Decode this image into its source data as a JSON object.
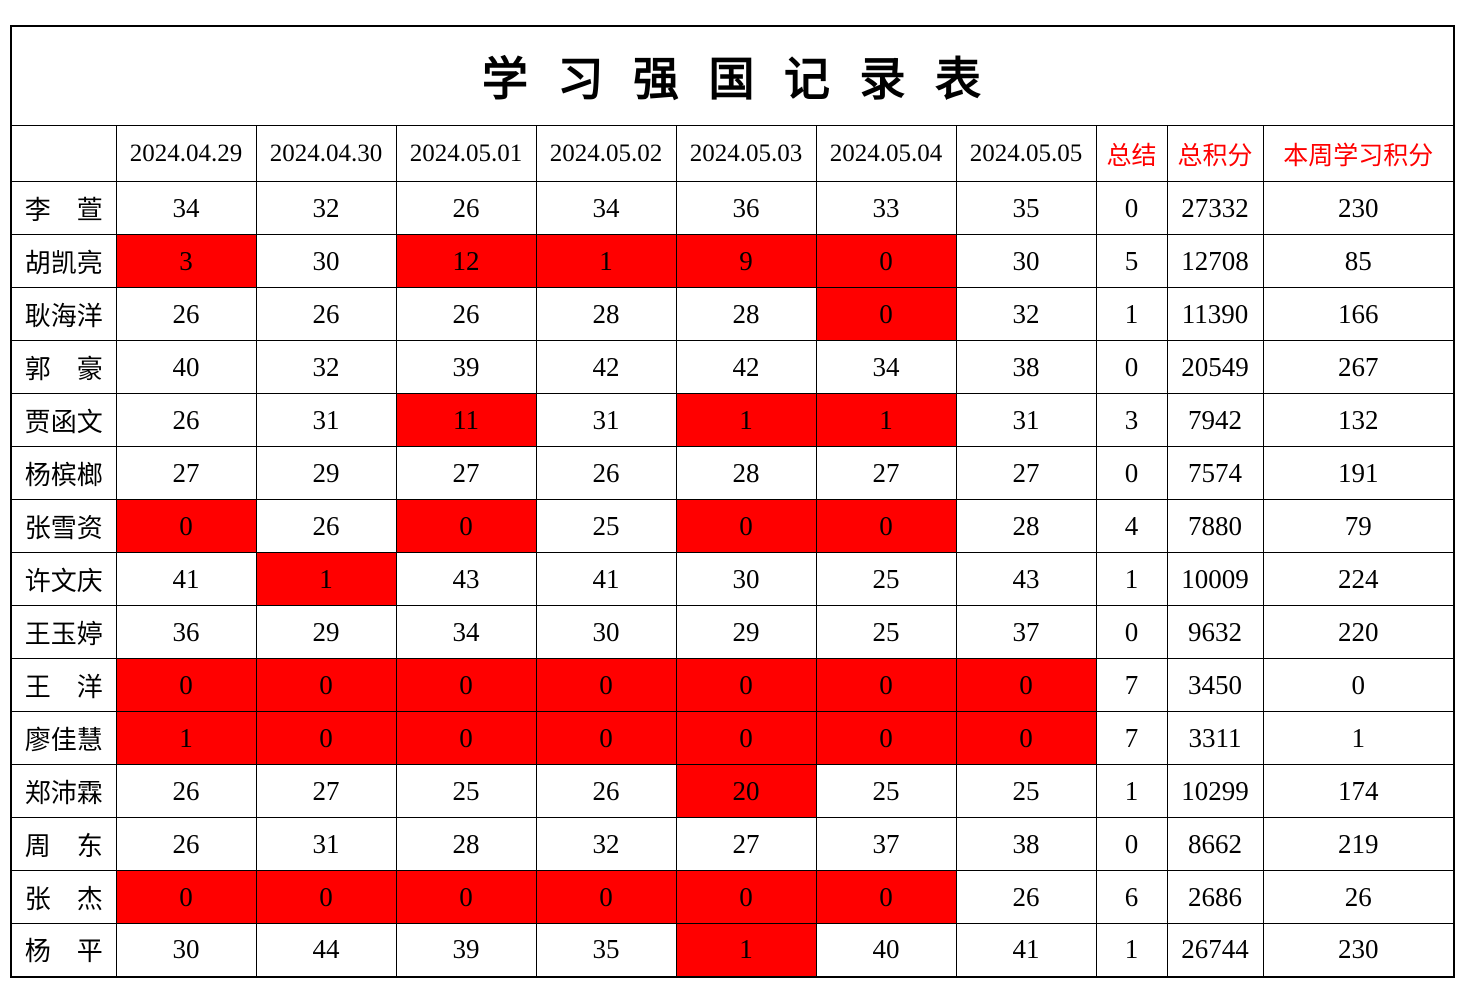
{
  "title": "学 习 强 国 记 录 表",
  "colors": {
    "alert_bg": "#FF0000",
    "alert_text": "#FFFF00",
    "accent_red": "#FF0000",
    "border": "#000000",
    "background": "#FFFFFF"
  },
  "table": {
    "corner_label": "",
    "date_columns": [
      "2024.04.29",
      "2024.04.30",
      "2024.05.01",
      "2024.05.02",
      "2024.05.03",
      "2024.05.04",
      "2024.05.05"
    ],
    "summary_columns": [
      "总结",
      "总积分",
      "本周学习积分"
    ],
    "rows": [
      {
        "name": "李　萱",
        "scores": [
          "34",
          "32",
          "26",
          "34",
          "36",
          "33",
          "35"
        ],
        "alerts": [],
        "summary": "0",
        "total": "27332",
        "week": "230"
      },
      {
        "name": "胡凯亮",
        "scores": [
          "3",
          "30",
          "12",
          "1",
          "9",
          "0",
          "30"
        ],
        "alerts": [
          0,
          2,
          3,
          4,
          5
        ],
        "summary": "5",
        "total": "12708",
        "week": "85"
      },
      {
        "name": "耿海洋",
        "scores": [
          "26",
          "26",
          "26",
          "28",
          "28",
          "0",
          "32"
        ],
        "alerts": [
          5
        ],
        "summary": "1",
        "total": "11390",
        "week": "166"
      },
      {
        "name": "郭　豪",
        "scores": [
          "40",
          "32",
          "39",
          "42",
          "42",
          "34",
          "38"
        ],
        "alerts": [],
        "summary": "0",
        "total": "20549",
        "week": "267"
      },
      {
        "name": "贾函文",
        "scores": [
          "26",
          "31",
          "11",
          "31",
          "1",
          "1",
          "31"
        ],
        "alerts": [
          2,
          4,
          5
        ],
        "summary": "3",
        "total": "7942",
        "week": "132"
      },
      {
        "name": "杨槟榔",
        "scores": [
          "27",
          "29",
          "27",
          "26",
          "28",
          "27",
          "27"
        ],
        "alerts": [],
        "summary": "0",
        "total": "7574",
        "week": "191"
      },
      {
        "name": "张雪资",
        "scores": [
          "0",
          "26",
          "0",
          "25",
          "0",
          "0",
          "28"
        ],
        "alerts": [
          0,
          2,
          4,
          5
        ],
        "summary": "4",
        "total": "7880",
        "week": "79"
      },
      {
        "name": "许文庆",
        "scores": [
          "41",
          "1",
          "43",
          "41",
          "30",
          "25",
          "43"
        ],
        "alerts": [
          1
        ],
        "summary": "1",
        "total": "10009",
        "week": "224"
      },
      {
        "name": "王玉婷",
        "scores": [
          "36",
          "29",
          "34",
          "30",
          "29",
          "25",
          "37"
        ],
        "alerts": [],
        "summary": "0",
        "total": "9632",
        "week": "220"
      },
      {
        "name": "王　洋",
        "scores": [
          "0",
          "0",
          "0",
          "0",
          "0",
          "0",
          "0"
        ],
        "alerts": [
          0,
          1,
          2,
          3,
          4,
          5,
          6
        ],
        "summary": "7",
        "total": "3450",
        "week": "0"
      },
      {
        "name": "廖佳慧",
        "scores": [
          "1",
          "0",
          "0",
          "0",
          "0",
          "0",
          "0"
        ],
        "alerts": [
          0,
          1,
          2,
          3,
          4,
          5,
          6
        ],
        "summary": "7",
        "total": "3311",
        "week": "1"
      },
      {
        "name": "郑沛霖",
        "scores": [
          "26",
          "27",
          "25",
          "26",
          "20",
          "25",
          "25"
        ],
        "alerts": [
          4
        ],
        "summary": "1",
        "total": "10299",
        "week": "174"
      },
      {
        "name": "周　东",
        "scores": [
          "26",
          "31",
          "28",
          "32",
          "27",
          "37",
          "38"
        ],
        "alerts": [],
        "summary": "0",
        "total": "8662",
        "week": "219"
      },
      {
        "name": "张　杰",
        "scores": [
          "0",
          "0",
          "0",
          "0",
          "0",
          "0",
          "26"
        ],
        "alerts": [
          0,
          1,
          2,
          3,
          4,
          5
        ],
        "summary": "6",
        "total": "2686",
        "week": "26"
      },
      {
        "name": "杨　平",
        "scores": [
          "30",
          "44",
          "39",
          "35",
          "1",
          "40",
          "41"
        ],
        "alerts": [
          4
        ],
        "summary": "1",
        "total": "26744",
        "week": "230"
      }
    ]
  }
}
